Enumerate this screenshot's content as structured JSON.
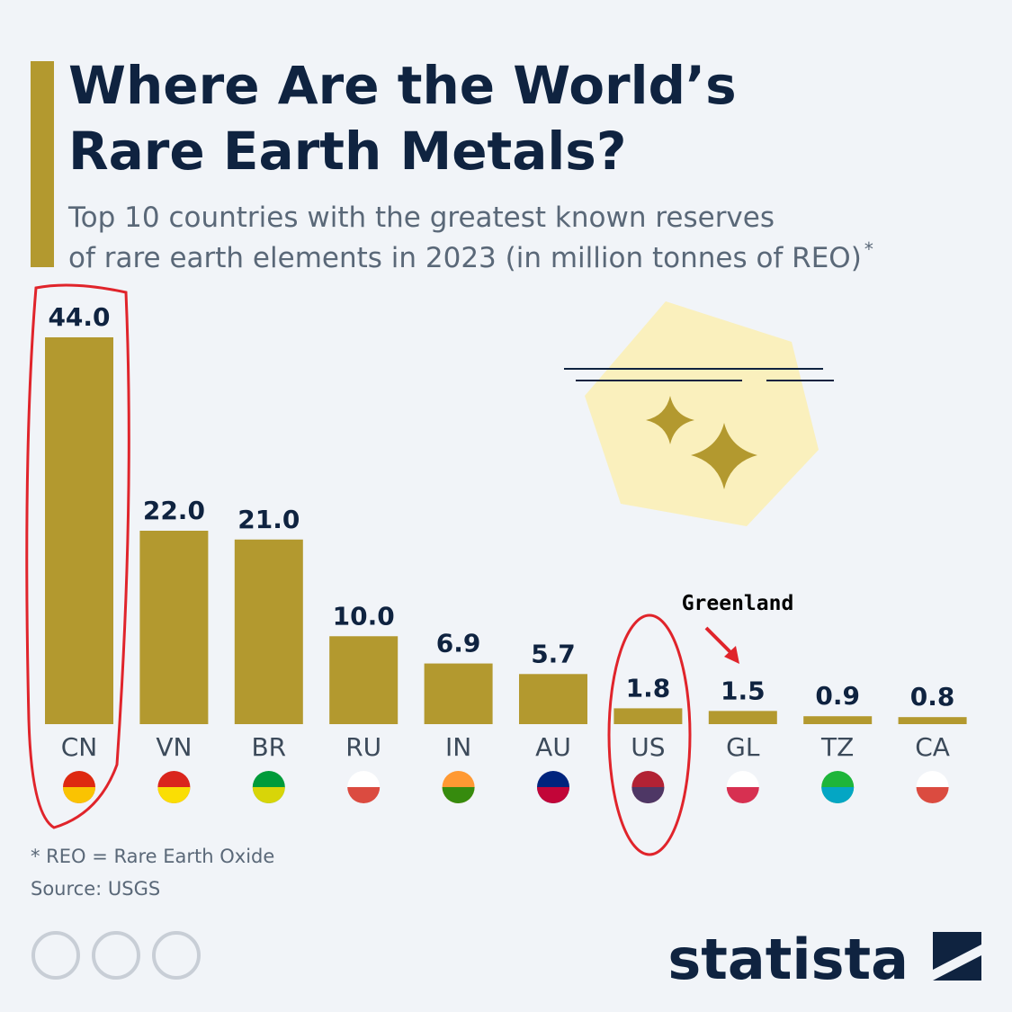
{
  "chart_data": {
    "type": "bar",
    "title": [
      "Where Are the World’s",
      "Rare Earth Metals?"
    ],
    "subtitle": [
      "Top 10 countries with the greatest known reserves",
      "of rare earth elements in 2023 (in million tonnes of REO)"
    ],
    "subtitle_mark": "*",
    "categories": [
      "CN",
      "VN",
      "BR",
      "RU",
      "IN",
      "AU",
      "US",
      "GL",
      "TZ",
      "CA"
    ],
    "values": [
      44.0,
      22.0,
      21.0,
      10.0,
      6.9,
      5.7,
      1.8,
      1.5,
      0.9,
      0.8
    ],
    "value_labels": [
      "44.0",
      "22.0",
      "21.0",
      "10.0",
      "6.9",
      "5.7",
      "1.8",
      "1.5",
      "0.9",
      "0.8"
    ],
    "color": "#b3992f",
    "annotation": "Greenland",
    "footnote": "* REO = Rare Earth Oxide",
    "source": "Source: USGS",
    "brand": "statista"
  }
}
